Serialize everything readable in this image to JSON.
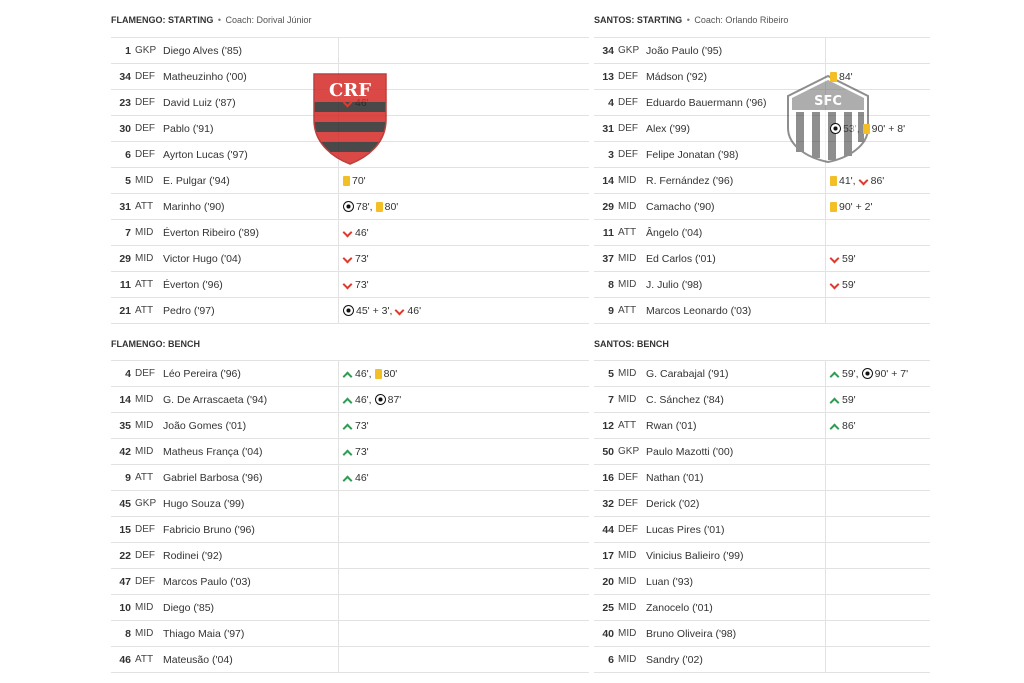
{
  "home": {
    "starting_title": "FLAMENGO: STARTING",
    "bench_title": "FLAMENGO: BENCH",
    "coach": "Coach: Dorival Júnior",
    "crest_name": "flamengo-crest",
    "starting": [
      {
        "num": "1",
        "pos": "GKP",
        "name": "Diego Alves ('85)",
        "events": []
      },
      {
        "num": "34",
        "pos": "DEF",
        "name": "Matheuzinho ('00)",
        "events": []
      },
      {
        "num": "23",
        "pos": "DEF",
        "name": "David Luiz ('87)",
        "events": [
          {
            "icon": "sub-out-icon",
            "text": "46'"
          }
        ]
      },
      {
        "num": "30",
        "pos": "DEF",
        "name": "Pablo ('91)",
        "events": []
      },
      {
        "num": "6",
        "pos": "DEF",
        "name": "Ayrton Lucas ('97)",
        "events": []
      },
      {
        "num": "5",
        "pos": "MID",
        "name": "E. Pulgar ('94)",
        "events": [
          {
            "icon": "yellow-card-icon",
            "text": "70'"
          }
        ]
      },
      {
        "num": "31",
        "pos": "ATT",
        "name": "Marinho ('90)",
        "events": [
          {
            "icon": "goal-icon",
            "text": "78',"
          },
          {
            "icon": "yellow-card-icon",
            "text": "80'"
          }
        ]
      },
      {
        "num": "7",
        "pos": "MID",
        "name": "Éverton Ribeiro ('89)",
        "events": [
          {
            "icon": "sub-out-icon",
            "text": "46'"
          }
        ]
      },
      {
        "num": "29",
        "pos": "MID",
        "name": "Victor Hugo ('04)",
        "events": [
          {
            "icon": "sub-out-icon",
            "text": "73'"
          }
        ]
      },
      {
        "num": "11",
        "pos": "ATT",
        "name": "Éverton ('96)",
        "events": [
          {
            "icon": "sub-out-icon",
            "text": "73'"
          }
        ]
      },
      {
        "num": "21",
        "pos": "ATT",
        "name": "Pedro ('97)",
        "events": [
          {
            "icon": "goal-icon",
            "text": "45' + 3',"
          },
          {
            "icon": "sub-out-icon",
            "text": "46'"
          }
        ]
      }
    ],
    "bench": [
      {
        "num": "4",
        "pos": "DEF",
        "name": "Léo Pereira ('96)",
        "events": [
          {
            "icon": "sub-in-icon",
            "text": "46',"
          },
          {
            "icon": "yellow-card-icon",
            "text": "80'"
          }
        ]
      },
      {
        "num": "14",
        "pos": "MID",
        "name": "G. De Arrascaeta ('94)",
        "events": [
          {
            "icon": "sub-in-icon",
            "text": "46',"
          },
          {
            "icon": "goal-icon",
            "text": "87'"
          }
        ]
      },
      {
        "num": "35",
        "pos": "MID",
        "name": "João Gomes ('01)",
        "events": [
          {
            "icon": "sub-in-icon",
            "text": "73'"
          }
        ]
      },
      {
        "num": "42",
        "pos": "MID",
        "name": "Matheus França ('04)",
        "events": [
          {
            "icon": "sub-in-icon",
            "text": "73'"
          }
        ]
      },
      {
        "num": "9",
        "pos": "ATT",
        "name": "Gabriel Barbosa ('96)",
        "events": [
          {
            "icon": "sub-in-icon",
            "text": "46'"
          }
        ]
      },
      {
        "num": "45",
        "pos": "GKP",
        "name": "Hugo Souza ('99)",
        "events": []
      },
      {
        "num": "15",
        "pos": "DEF",
        "name": "Fabricio Bruno ('96)",
        "events": []
      },
      {
        "num": "22",
        "pos": "DEF",
        "name": "Rodinei ('92)",
        "events": []
      },
      {
        "num": "47",
        "pos": "DEF",
        "name": "Marcos Paulo ('03)",
        "events": []
      },
      {
        "num": "10",
        "pos": "MID",
        "name": "Diego ('85)",
        "events": []
      },
      {
        "num": "8",
        "pos": "MID",
        "name": "Thiago Maia ('97)",
        "events": []
      },
      {
        "num": "46",
        "pos": "ATT",
        "name": "Mateusão ('04)",
        "events": []
      }
    ]
  },
  "away": {
    "starting_title": "SANTOS: STARTING",
    "bench_title": "SANTOS: BENCH",
    "coach": "Coach: Orlando Ribeiro",
    "crest_name": "santos-crest",
    "starting": [
      {
        "num": "34",
        "pos": "GKP",
        "name": "João Paulo ('95)",
        "events": []
      },
      {
        "num": "13",
        "pos": "DEF",
        "name": "Mádson ('92)",
        "events": [
          {
            "icon": "yellow-card-icon",
            "text": "84'"
          }
        ]
      },
      {
        "num": "4",
        "pos": "DEF",
        "name": "Eduardo Bauermann ('96)",
        "events": []
      },
      {
        "num": "31",
        "pos": "DEF",
        "name": "Alex ('99)",
        "events": [
          {
            "icon": "goal-icon",
            "text": "53',"
          },
          {
            "icon": "yellow-card-icon",
            "text": "90' + 8'"
          }
        ]
      },
      {
        "num": "3",
        "pos": "DEF",
        "name": "Felipe Jonatan ('98)",
        "events": []
      },
      {
        "num": "14",
        "pos": "MID",
        "name": "R. Fernández ('96)",
        "events": [
          {
            "icon": "yellow-card-icon",
            "text": "41',"
          },
          {
            "icon": "sub-out-icon",
            "text": "86'"
          }
        ]
      },
      {
        "num": "29",
        "pos": "MID",
        "name": "Camacho ('90)",
        "events": [
          {
            "icon": "yellow-card-icon",
            "text": "90' + 2'"
          }
        ]
      },
      {
        "num": "11",
        "pos": "ATT",
        "name": "Ângelo ('04)",
        "events": []
      },
      {
        "num": "37",
        "pos": "MID",
        "name": "Ed Carlos ('01)",
        "events": [
          {
            "icon": "sub-out-icon",
            "text": "59'"
          }
        ]
      },
      {
        "num": "8",
        "pos": "MID",
        "name": "J. Julio ('98)",
        "events": [
          {
            "icon": "sub-out-icon",
            "text": "59'"
          }
        ]
      },
      {
        "num": "9",
        "pos": "ATT",
        "name": "Marcos Leonardo ('03)",
        "events": []
      }
    ],
    "bench": [
      {
        "num": "5",
        "pos": "MID",
        "name": "G. Carabajal ('91)",
        "events": [
          {
            "icon": "sub-in-icon",
            "text": "59',"
          },
          {
            "icon": "goal-icon",
            "text": "90' + 7'"
          }
        ]
      },
      {
        "num": "7",
        "pos": "MID",
        "name": "C. Sánchez ('84)",
        "events": [
          {
            "icon": "sub-in-icon",
            "text": "59'"
          }
        ]
      },
      {
        "num": "12",
        "pos": "ATT",
        "name": "Rwan ('01)",
        "events": [
          {
            "icon": "sub-in-icon",
            "text": "86'"
          }
        ]
      },
      {
        "num": "50",
        "pos": "GKP",
        "name": "Paulo Mazotti ('00)",
        "events": []
      },
      {
        "num": "16",
        "pos": "DEF",
        "name": "Nathan ('01)",
        "events": []
      },
      {
        "num": "32",
        "pos": "DEF",
        "name": "Derick ('02)",
        "events": []
      },
      {
        "num": "44",
        "pos": "DEF",
        "name": "Lucas Pires ('01)",
        "events": []
      },
      {
        "num": "17",
        "pos": "MID",
        "name": "Vinicius Balieiro ('99)",
        "events": []
      },
      {
        "num": "20",
        "pos": "MID",
        "name": "Luan ('93)",
        "events": []
      },
      {
        "num": "25",
        "pos": "MID",
        "name": "Zanocelo ('01)",
        "events": []
      },
      {
        "num": "40",
        "pos": "MID",
        "name": "Bruno Oliveira ('98)",
        "events": []
      },
      {
        "num": "6",
        "pos": "MID",
        "name": "Sandry ('02)",
        "events": []
      }
    ]
  },
  "colors": {
    "card": "#f4bf26",
    "sub_out": "#e03a2e",
    "sub_in": "#2d9d52",
    "divider": "#e2e2e2"
  }
}
